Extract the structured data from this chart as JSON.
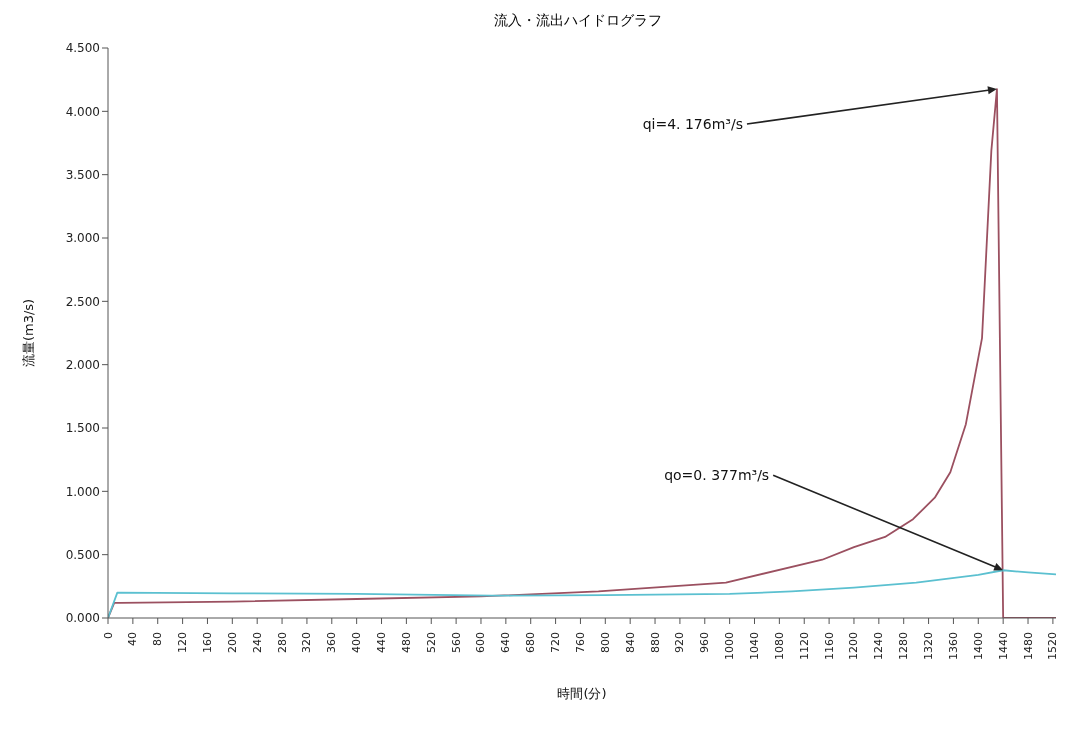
{
  "chart_data": {
    "type": "line",
    "title": "流入・流出ハイドログラフ",
    "xlabel": "時間(分)",
    "ylabel": "流量(m3/s)",
    "xlim": [
      0,
      1525
    ],
    "xticks": [
      0,
      40,
      80,
      120,
      160,
      200,
      240,
      280,
      320,
      360,
      400,
      440,
      480,
      520,
      560,
      600,
      640,
      680,
      720,
      760,
      800,
      840,
      880,
      920,
      960,
      1000,
      1040,
      1080,
      1120,
      1160,
      1200,
      1240,
      1280,
      1320,
      1360,
      1400,
      1440,
      1480,
      1520
    ],
    "ylim": [
      0,
      4.5
    ],
    "yticks": [
      {
        "value": 0,
        "label": "0.000"
      },
      {
        "value": 0.5,
        "label": "0.500"
      },
      {
        "value": 1,
        "label": "1.000"
      },
      {
        "value": 1.5,
        "label": "1.500"
      },
      {
        "value": 2,
        "label": "2.000"
      },
      {
        "value": 2.5,
        "label": "2.500"
      },
      {
        "value": 3,
        "label": "3.000"
      },
      {
        "value": 3.5,
        "label": "3.500"
      },
      {
        "value": 4,
        "label": "4.000"
      },
      {
        "value": 4.5,
        "label": "4.500"
      }
    ],
    "grid": false,
    "legend": false,
    "marker": "none",
    "line_style": "solid",
    "series": [
      {
        "color": "#9b5060",
        "x": [
          0,
          10,
          20,
          200,
          400,
          600,
          789,
          994,
          1149,
          1200,
          1250,
          1295,
          1330,
          1355,
          1380,
          1406,
          1421,
          1430,
          1440,
          1525
        ],
        "values": [
          0,
          0.12,
          0.12,
          0.13,
          0.15,
          0.17,
          0.21,
          0.28,
          0.46,
          0.56,
          0.64,
          0.78,
          0.95,
          1.15,
          1.53,
          2.21,
          3.69,
          4.176,
          0,
          0
        ]
      },
      {
        "color": "#5bc0d0",
        "x": [
          0,
          15,
          200,
          400,
          617,
          800,
          1000,
          1100,
          1200,
          1300,
          1400,
          1440,
          1480,
          1525
        ],
        "values": [
          0,
          0.2,
          0.195,
          0.19,
          0.176,
          0.18,
          0.19,
          0.21,
          0.24,
          0.28,
          0.34,
          0.377,
          0.36,
          0.345
        ]
      }
    ],
    "annotations": [
      "qi=4. 176m³/s",
      "qo=0. 377m³/s"
    ]
  }
}
